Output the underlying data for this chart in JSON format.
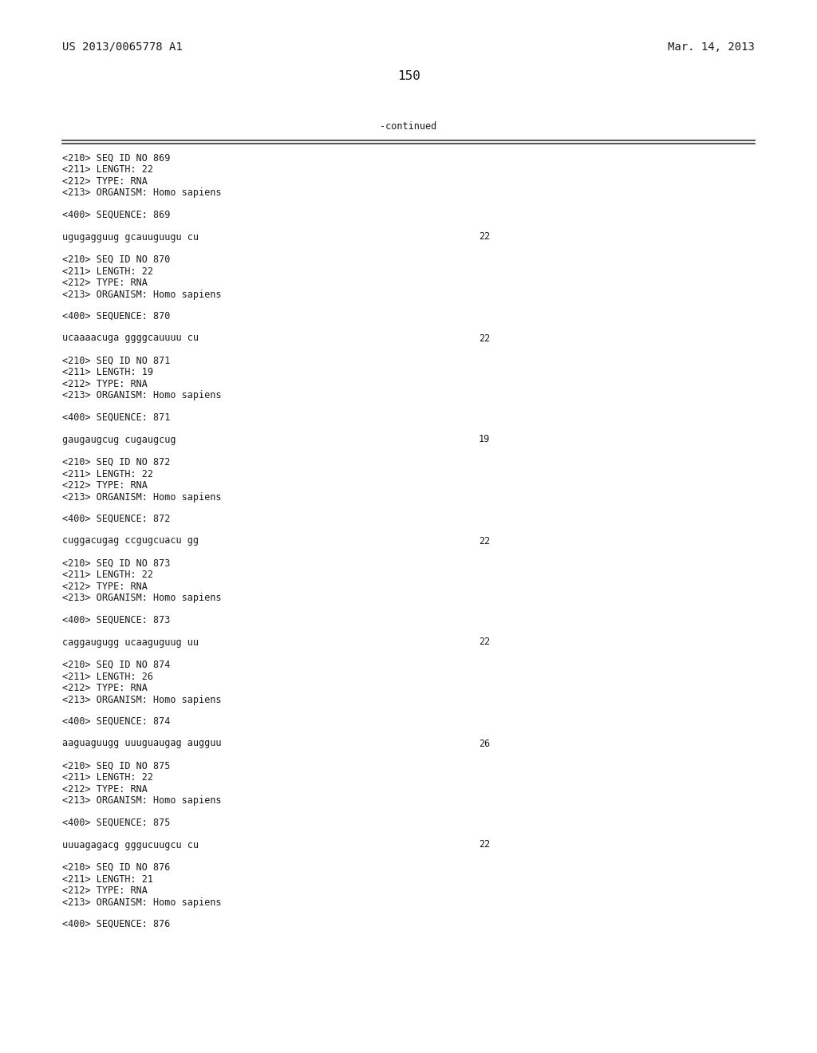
{
  "background_color": "#ffffff",
  "top_left_text": "US 2013/0065778 A1",
  "top_right_text": "Mar. 14, 2013",
  "page_number": "150",
  "continued_label": "-continued",
  "font_family": "DejaVu Sans Mono",
  "text_color": "#1a1a1a",
  "small_fs": 8.5,
  "header_fs": 10.0,
  "page_num_fs": 11.5,
  "entries": [
    {
      "seq_id": "869",
      "length": "22",
      "type": "RNA",
      "organism": "Homo sapiens",
      "sequence": "ugugagguug gcauuguugu cu",
      "seq_length_num": "22"
    },
    {
      "seq_id": "870",
      "length": "22",
      "type": "RNA",
      "organism": "Homo sapiens",
      "sequence": "ucaaaacuga ggggcauuuu cu",
      "seq_length_num": "22"
    },
    {
      "seq_id": "871",
      "length": "19",
      "type": "RNA",
      "organism": "Homo sapiens",
      "sequence": "gaugaugcug cugaugcug",
      "seq_length_num": "19"
    },
    {
      "seq_id": "872",
      "length": "22",
      "type": "RNA",
      "organism": "Homo sapiens",
      "sequence": "cuggacugag ccgugcuacu gg",
      "seq_length_num": "22"
    },
    {
      "seq_id": "873",
      "length": "22",
      "type": "RNA",
      "organism": "Homo sapiens",
      "sequence": "caggaugugg ucaaguguug uu",
      "seq_length_num": "22"
    },
    {
      "seq_id": "874",
      "length": "26",
      "type": "RNA",
      "organism": "Homo sapiens",
      "sequence": "aaguaguugg uuuguaugag augguu",
      "seq_length_num": "26"
    },
    {
      "seq_id": "875",
      "length": "22",
      "type": "RNA",
      "organism": "Homo sapiens",
      "sequence": "uuuagagacg gggucuugcu cu",
      "seq_length_num": "22"
    },
    {
      "seq_id": "876",
      "length": "21",
      "type": "RNA",
      "organism": "Homo sapiens",
      "sequence": "",
      "seq_length_num": ""
    }
  ]
}
